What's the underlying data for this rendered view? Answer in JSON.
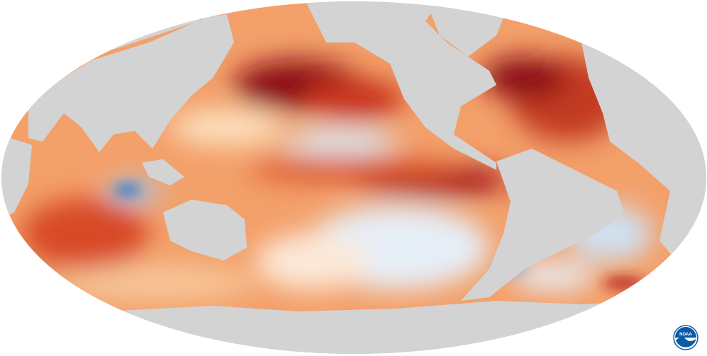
{
  "map": {
    "projection": "mollweide",
    "colors": {
      "land": "#d3d3d3",
      "background": "#ffffff",
      "warm_strong": "#8b0a12",
      "warm": "#e0552a",
      "warm_light": "#f6b27a",
      "neutral": "#fff3e0",
      "cool": "#b7d3ec",
      "cool_strong": "#2f78c4"
    }
  },
  "logo": {
    "name": "NOAA",
    "text": "NOAA",
    "color": "#0a5aa8"
  }
}
